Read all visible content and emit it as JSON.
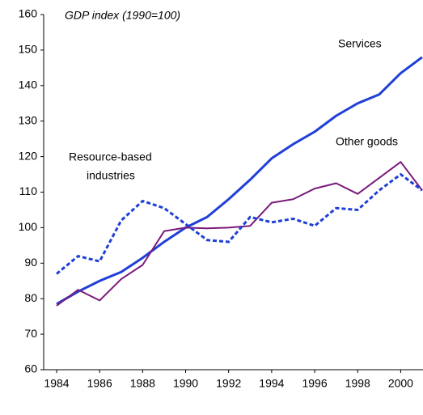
{
  "chart_data": {
    "type": "line",
    "title": "GDP index (1990=100)",
    "x": [
      1984,
      1985,
      1986,
      1987,
      1988,
      1989,
      1990,
      1991,
      1992,
      1993,
      1994,
      1995,
      1996,
      1997,
      1998,
      1999,
      2000,
      2001
    ],
    "series": [
      {
        "name": "Services",
        "color": "#1f3fd8",
        "style": "solid",
        "width": 3,
        "values": [
          78.5,
          82,
          85,
          87.5,
          91.5,
          96,
          100,
          103,
          108,
          113.5,
          119.5,
          123.5,
          127,
          131.5,
          135,
          137.5,
          143.5,
          148
        ]
      },
      {
        "name": "Other goods",
        "color": "#7a1a7a",
        "style": "solid",
        "width": 2,
        "values": [
          78,
          82.5,
          79.5,
          85.5,
          89.5,
          99,
          100,
          99.8,
          100,
          100.5,
          107,
          108,
          111,
          112.5,
          109.5,
          114,
          118.5,
          110.5
        ]
      },
      {
        "name": "Resource-based industries",
        "color": "#1f3fd8",
        "style": "dotted",
        "width": 3,
        "values": [
          87,
          92,
          90.5,
          102,
          107.5,
          105.5,
          101,
          96.5,
          96,
          103,
          101.5,
          102.5,
          100.5,
          105.5,
          105,
          110.5,
          115,
          110.5
        ]
      }
    ],
    "annotations": [
      "Services",
      "Other goods",
      "Resource-based",
      "industries"
    ],
    "xlim": [
      1984,
      2001
    ],
    "xticks": [
      1984,
      1986,
      1988,
      1990,
      1992,
      1994,
      1996,
      1998,
      2000
    ],
    "ylim": [
      60,
      160
    ],
    "yticks": [
      60,
      70,
      80,
      90,
      100,
      110,
      120,
      130,
      140,
      150,
      160
    ],
    "grid": false
  }
}
